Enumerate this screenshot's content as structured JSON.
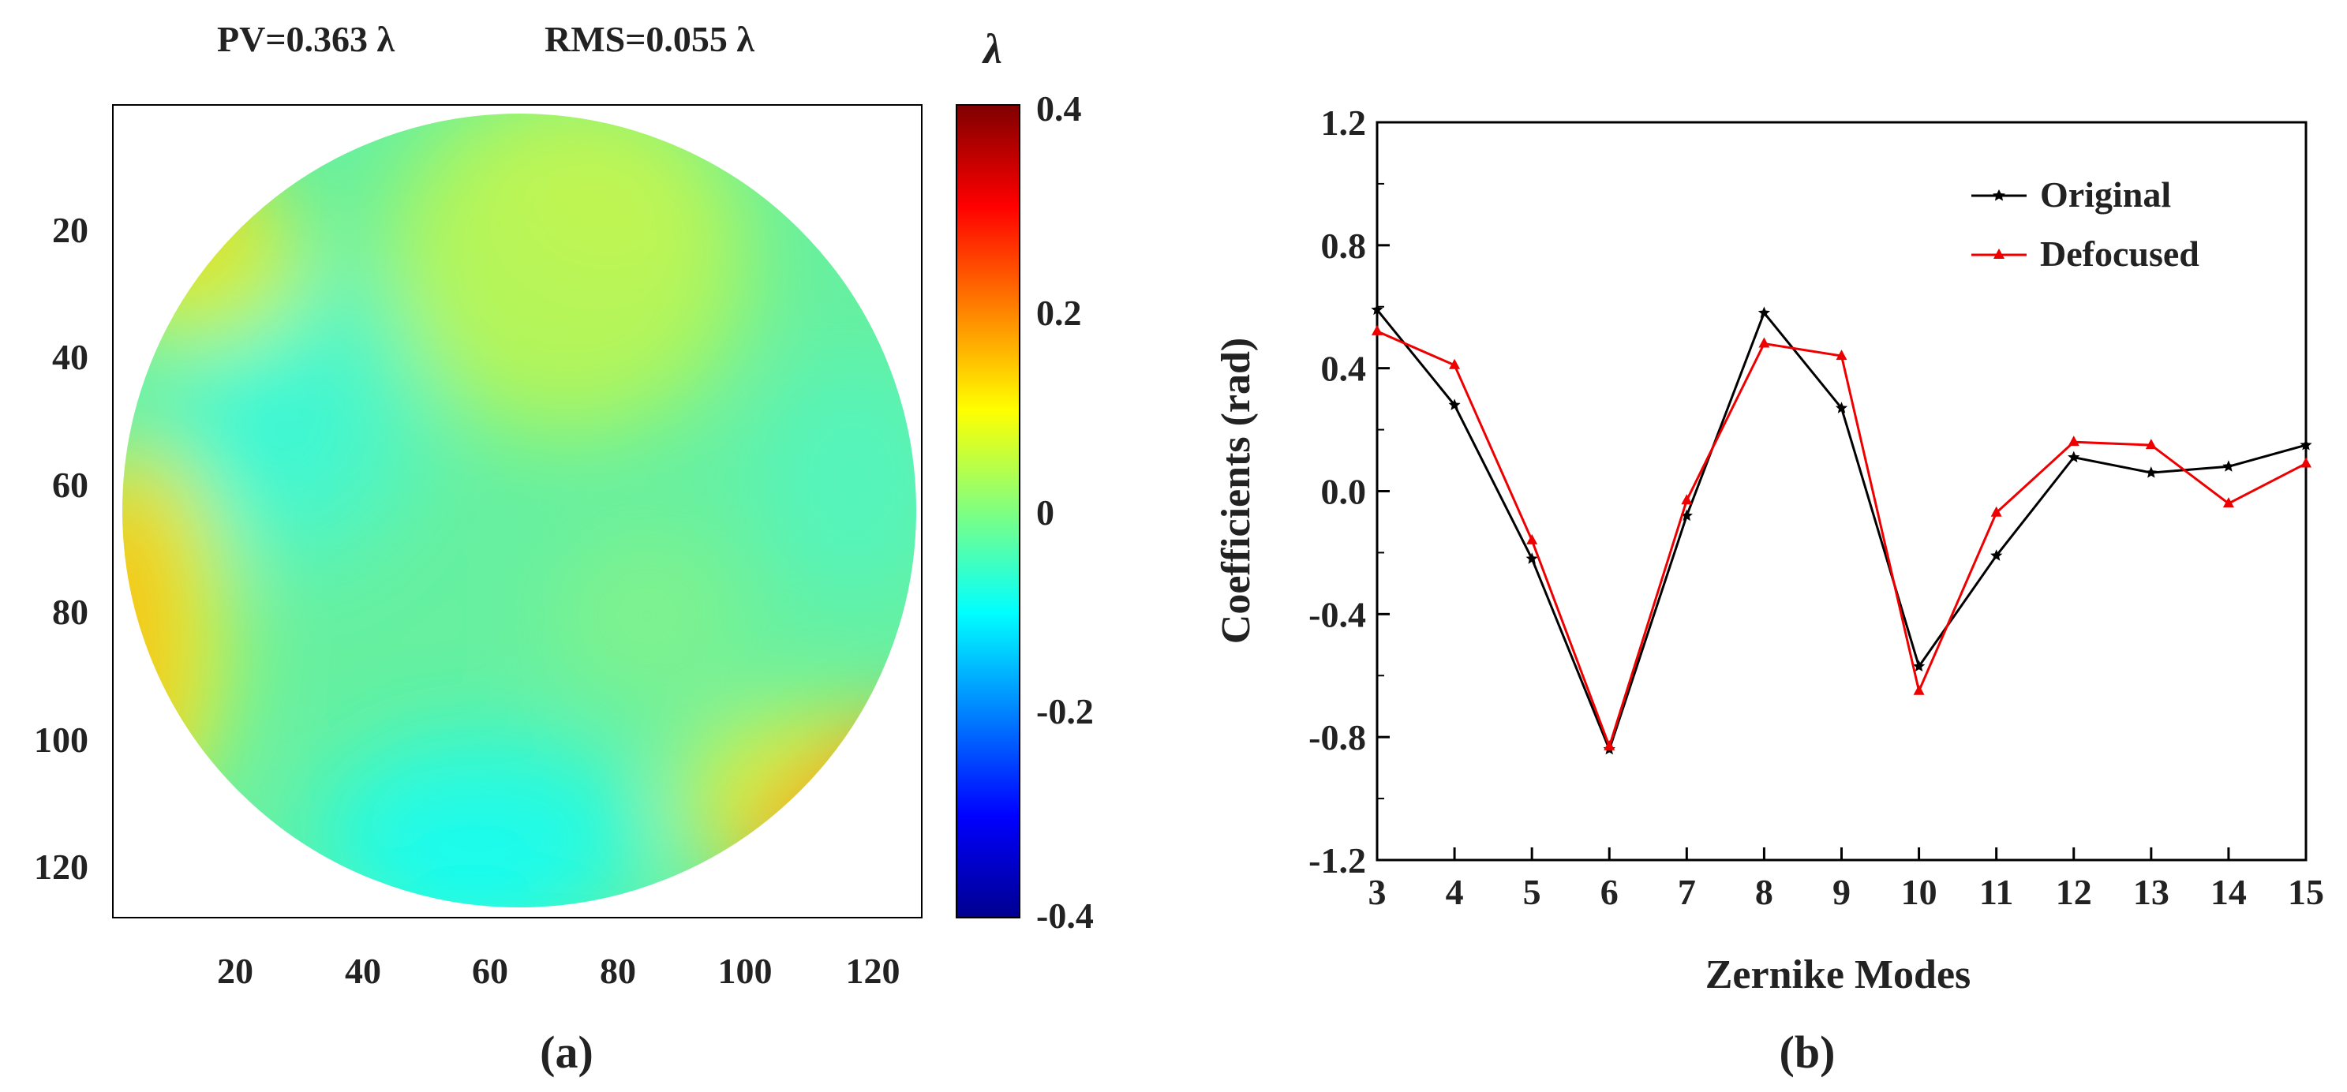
{
  "colors": {
    "original": "#000000",
    "defocused": "#ee0000",
    "axis": "#000000",
    "text": "#222222",
    "colormap": [
      "#00008f",
      "#0000ff",
      "#0080ff",
      "#00ffff",
      "#80ff80",
      "#ffff00",
      "#ff8000",
      "#ff0000",
      "#800000"
    ]
  },
  "chart_data": [
    {
      "type": "heatmap",
      "panel_label": "(a)",
      "title_pv": "PV=0.363 λ",
      "title_rms": "RMS=0.055 λ",
      "pv_value": 0.363,
      "rms_value": 0.055,
      "unit": "λ",
      "description_of_field": "circular pupil wavefront map, 128x128 grid",
      "x_ticks": [
        "20",
        "40",
        "60",
        "80",
        "100",
        "120"
      ],
      "y_ticks": [
        "20",
        "40",
        "60",
        "80",
        "100",
        "120"
      ],
      "xlim": [
        1,
        128
      ],
      "ylim": [
        1,
        128
      ],
      "colorbar": {
        "label": "λ",
        "range": [
          -0.4,
          0.4
        ],
        "ticks": [
          "0.4",
          "0.2",
          "0",
          "-0.2",
          "-0.4"
        ]
      }
    },
    {
      "type": "line",
      "panel_label": "(b)",
      "xlabel": "Zernike Modes",
      "ylabel": "Coefficients (rad)",
      "x": [
        3,
        4,
        5,
        6,
        7,
        8,
        9,
        10,
        11,
        12,
        13,
        14,
        15
      ],
      "x_ticks": [
        "3",
        "4",
        "5",
        "6",
        "7",
        "8",
        "9",
        "10",
        "11",
        "12",
        "13",
        "14",
        "15"
      ],
      "y_ticks": [
        "1.2",
        "0.8",
        "0.4",
        "0.0",
        "-0.4",
        "-0.8",
        "-1.2"
      ],
      "xlim": [
        3,
        15
      ],
      "ylim": [
        -1.2,
        1.2
      ],
      "legend_position": "top-right",
      "series": [
        {
          "name": "Original",
          "marker": "star",
          "values": [
            0.59,
            0.28,
            -0.22,
            -0.84,
            -0.08,
            0.58,
            0.27,
            -0.57,
            -0.21,
            0.11,
            0.06,
            0.08,
            0.15
          ]
        },
        {
          "name": "Defocused",
          "marker": "triangle",
          "values": [
            0.52,
            0.41,
            -0.16,
            -0.83,
            -0.03,
            0.48,
            0.44,
            -0.65,
            -0.07,
            0.16,
            0.15,
            -0.04,
            0.09
          ]
        }
      ]
    }
  ]
}
